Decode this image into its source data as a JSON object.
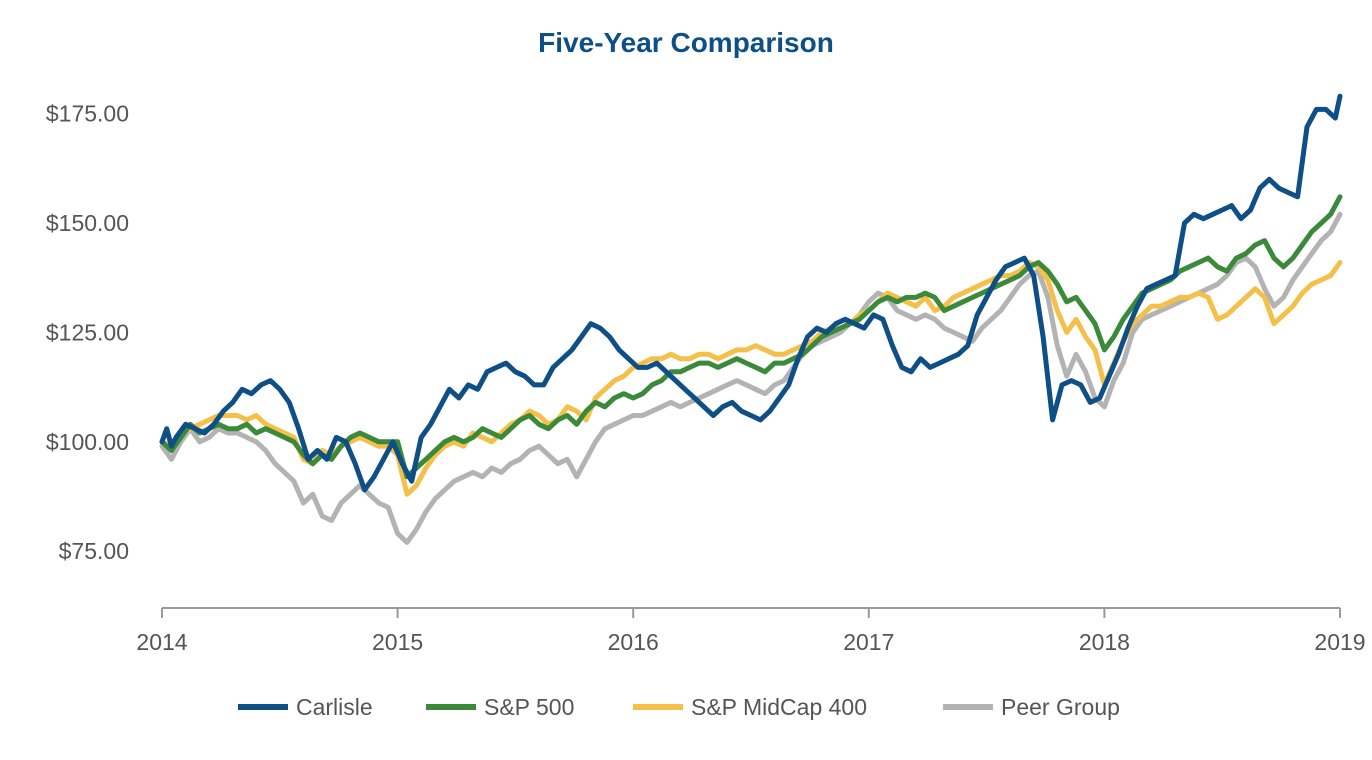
{
  "chart_data": {
    "type": "line",
    "title": "Five-Year Comparison",
    "xlabel": "",
    "ylabel": "",
    "xlim": [
      2014,
      2019
    ],
    "ylim": [
      62,
      185
    ],
    "x_ticks": [
      {
        "value": 2014,
        "label": "2014"
      },
      {
        "value": 2015,
        "label": "2015"
      },
      {
        "value": 2016,
        "label": "2016"
      },
      {
        "value": 2017,
        "label": "2017"
      },
      {
        "value": 2018,
        "label": "2018"
      },
      {
        "value": 2019,
        "label": "2019"
      }
    ],
    "y_ticks": [
      {
        "value": 75,
        "label": "$75.00"
      },
      {
        "value": 100,
        "label": "$100.00"
      },
      {
        "value": 125,
        "label": "$125.00"
      },
      {
        "value": 150,
        "label": "$150.00"
      },
      {
        "value": 175,
        "label": "$175.00"
      }
    ],
    "grid": false,
    "legend_position": "bottom",
    "colors": {
      "axis": "#999999",
      "title": "#0d4f86",
      "text": "#555555"
    },
    "series": [
      {
        "name": "Carlisle",
        "color": "#0d4f86",
        "x": [
          2014.0,
          2014.02,
          2014.04,
          2014.06,
          2014.1,
          2014.14,
          2014.18,
          2014.22,
          2014.26,
          2014.3,
          2014.34,
          2014.38,
          2014.42,
          2014.46,
          2014.5,
          2014.54,
          2014.58,
          2014.62,
          2014.66,
          2014.7,
          2014.74,
          2014.78,
          2014.82,
          2014.86,
          2014.9,
          2014.94,
          2014.98,
          2015.02,
          2015.06,
          2015.1,
          2015.14,
          2015.18,
          2015.22,
          2015.26,
          2015.3,
          2015.34,
          2015.38,
          2015.42,
          2015.46,
          2015.5,
          2015.54,
          2015.58,
          2015.62,
          2015.66,
          2015.7,
          2015.74,
          2015.78,
          2015.82,
          2015.86,
          2015.9,
          2015.94,
          2015.98,
          2016.02,
          2016.06,
          2016.1,
          2016.14,
          2016.18,
          2016.22,
          2016.26,
          2016.3,
          2016.34,
          2016.38,
          2016.42,
          2016.46,
          2016.5,
          2016.54,
          2016.58,
          2016.62,
          2016.66,
          2016.7,
          2016.74,
          2016.78,
          2016.82,
          2016.86,
          2016.9,
          2016.94,
          2016.98,
          2017.02,
          2017.06,
          2017.1,
          2017.14,
          2017.18,
          2017.22,
          2017.26,
          2017.3,
          2017.34,
          2017.38,
          2017.42,
          2017.46,
          2017.5,
          2017.54,
          2017.58,
          2017.62,
          2017.66,
          2017.7,
          2017.74,
          2017.78,
          2017.82,
          2017.86,
          2017.9,
          2017.94,
          2017.98,
          2018.02,
          2018.06,
          2018.1,
          2018.14,
          2018.18,
          2018.22,
          2018.26,
          2018.3,
          2018.34,
          2018.38,
          2018.42,
          2018.46,
          2018.5,
          2018.54,
          2018.58,
          2018.62,
          2018.66,
          2018.7,
          2018.74,
          2018.78,
          2018.82,
          2018.86,
          2018.9,
          2018.94,
          2018.98,
          2019.0
        ],
        "values": [
          100,
          103,
          99,
          101,
          104,
          103,
          102,
          104,
          107,
          109,
          112,
          111,
          113,
          114,
          112,
          109,
          103,
          96,
          98,
          96,
          101,
          100,
          95,
          89,
          92,
          96,
          100,
          95,
          91,
          101,
          104,
          108,
          112,
          110,
          113,
          112,
          116,
          117,
          118,
          116,
          115,
          113,
          113,
          117,
          119,
          121,
          124,
          127,
          126,
          124,
          121,
          119,
          117,
          117,
          118,
          116,
          114,
          112,
          110,
          108,
          106,
          108,
          109,
          107,
          106,
          105,
          107,
          110,
          113,
          119,
          124,
          126,
          125,
          127,
          128,
          127,
          126,
          129,
          128,
          122,
          117,
          116,
          119,
          117,
          118,
          119,
          120,
          122,
          129,
          133,
          137,
          140,
          141,
          142,
          138,
          124,
          105,
          113,
          114,
          113,
          109,
          110,
          115,
          120,
          126,
          131,
          135,
          136,
          137,
          138,
          150,
          152,
          151,
          152,
          153,
          154,
          151,
          153,
          158,
          160,
          158,
          157,
          156,
          172,
          176,
          176,
          174,
          179
        ]
      },
      {
        "name": "S&P 500",
        "color": "#3a8a3a",
        "x": [
          2014.0,
          2014.04,
          2014.08,
          2014.12,
          2014.16,
          2014.2,
          2014.24,
          2014.28,
          2014.32,
          2014.36,
          2014.4,
          2014.44,
          2014.48,
          2014.52,
          2014.56,
          2014.6,
          2014.64,
          2014.68,
          2014.72,
          2014.76,
          2014.8,
          2014.84,
          2014.88,
          2014.92,
          2014.96,
          2015.0,
          2015.04,
          2015.08,
          2015.12,
          2015.16,
          2015.2,
          2015.24,
          2015.28,
          2015.32,
          2015.36,
          2015.4,
          2015.44,
          2015.48,
          2015.52,
          2015.56,
          2015.6,
          2015.64,
          2015.68,
          2015.72,
          2015.76,
          2015.8,
          2015.84,
          2015.88,
          2015.92,
          2015.96,
          2016.0,
          2016.04,
          2016.08,
          2016.12,
          2016.16,
          2016.2,
          2016.24,
          2016.28,
          2016.32,
          2016.36,
          2016.4,
          2016.44,
          2016.48,
          2016.52,
          2016.56,
          2016.6,
          2016.64,
          2016.68,
          2016.72,
          2016.76,
          2016.8,
          2016.84,
          2016.88,
          2016.92,
          2016.96,
          2017.0,
          2017.04,
          2017.08,
          2017.12,
          2017.16,
          2017.2,
          2017.24,
          2017.28,
          2017.32,
          2017.36,
          2017.4,
          2017.44,
          2017.48,
          2017.52,
          2017.56,
          2017.6,
          2017.64,
          2017.68,
          2017.72,
          2017.76,
          2017.8,
          2017.84,
          2017.88,
          2017.92,
          2017.96,
          2018.0,
          2018.04,
          2018.08,
          2018.12,
          2018.16,
          2018.2,
          2018.24,
          2018.28,
          2018.32,
          2018.36,
          2018.4,
          2018.44,
          2018.48,
          2018.52,
          2018.56,
          2018.6,
          2018.64,
          2018.68,
          2018.72,
          2018.76,
          2018.8,
          2018.84,
          2018.88,
          2018.92,
          2018.96,
          2019.0
        ],
        "values": [
          100,
          98,
          101,
          104,
          102,
          103,
          104,
          103,
          103,
          104,
          102,
          103,
          102,
          101,
          100,
          97,
          95,
          97,
          96,
          99,
          101,
          102,
          101,
          100,
          100,
          100,
          92,
          94,
          96,
          98,
          100,
          101,
          100,
          101,
          103,
          102,
          101,
          103,
          105,
          106,
          104,
          103,
          105,
          106,
          104,
          107,
          109,
          108,
          110,
          111,
          110,
          111,
          113,
          114,
          116,
          116,
          117,
          118,
          118,
          117,
          118,
          119,
          118,
          117,
          116,
          118,
          118,
          119,
          120,
          122,
          124,
          125,
          126,
          127,
          128,
          130,
          132,
          133,
          132,
          133,
          133,
          134,
          133,
          130,
          131,
          132,
          133,
          134,
          135,
          136,
          137,
          138,
          140,
          141,
          139,
          136,
          132,
          133,
          130,
          127,
          121,
          124,
          128,
          131,
          134,
          135,
          136,
          137,
          139,
          140,
          141,
          142,
          140,
          139,
          142,
          143,
          145,
          146,
          142,
          140,
          142,
          145,
          148,
          150,
          152,
          156
        ]
      },
      {
        "name": "S&P MidCap 400",
        "color": "#f5c04a",
        "x": [
          2014.0,
          2014.04,
          2014.08,
          2014.12,
          2014.16,
          2014.2,
          2014.24,
          2014.28,
          2014.32,
          2014.36,
          2014.4,
          2014.44,
          2014.48,
          2014.52,
          2014.56,
          2014.6,
          2014.64,
          2014.68,
          2014.72,
          2014.76,
          2014.8,
          2014.84,
          2014.88,
          2014.92,
          2014.96,
          2015.0,
          2015.04,
          2015.08,
          2015.12,
          2015.16,
          2015.2,
          2015.24,
          2015.28,
          2015.32,
          2015.36,
          2015.4,
          2015.44,
          2015.48,
          2015.52,
          2015.56,
          2015.6,
          2015.64,
          2015.68,
          2015.72,
          2015.76,
          2015.8,
          2015.84,
          2015.88,
          2015.92,
          2015.96,
          2016.0,
          2016.04,
          2016.08,
          2016.12,
          2016.16,
          2016.2,
          2016.24,
          2016.28,
          2016.32,
          2016.36,
          2016.4,
          2016.44,
          2016.48,
          2016.52,
          2016.56,
          2016.6,
          2016.64,
          2016.68,
          2016.72,
          2016.76,
          2016.8,
          2016.84,
          2016.88,
          2016.92,
          2016.96,
          2017.0,
          2017.04,
          2017.08,
          2017.12,
          2017.16,
          2017.2,
          2017.24,
          2017.28,
          2017.32,
          2017.36,
          2017.4,
          2017.44,
          2017.48,
          2017.52,
          2017.56,
          2017.6,
          2017.64,
          2017.68,
          2017.72,
          2017.76,
          2017.8,
          2017.84,
          2017.88,
          2017.92,
          2017.96,
          2018.0,
          2018.04,
          2018.08,
          2018.12,
          2018.16,
          2018.2,
          2018.24,
          2018.28,
          2018.32,
          2018.36,
          2018.4,
          2018.44,
          2018.48,
          2018.52,
          2018.56,
          2018.6,
          2018.64,
          2018.68,
          2018.72,
          2018.76,
          2018.8,
          2018.84,
          2018.88,
          2018.92,
          2018.96,
          2019.0
        ],
        "values": [
          100,
          99,
          102,
          103,
          104,
          105,
          106,
          106,
          106,
          105,
          106,
          104,
          103,
          102,
          101,
          96,
          95,
          98,
          97,
          99,
          100,
          101,
          100,
          99,
          99,
          97,
          88,
          90,
          94,
          97,
          99,
          100,
          99,
          102,
          101,
          100,
          102,
          104,
          105,
          107,
          106,
          104,
          105,
          108,
          107,
          105,
          110,
          112,
          114,
          115,
          117,
          118,
          119,
          119,
          120,
          119,
          119,
          120,
          120,
          119,
          120,
          121,
          121,
          122,
          121,
          120,
          120,
          121,
          122,
          123,
          125,
          126,
          126,
          127,
          129,
          130,
          132,
          134,
          133,
          132,
          131,
          133,
          130,
          131,
          133,
          134,
          135,
          136,
          137,
          138,
          138,
          139,
          141,
          140,
          137,
          130,
          125,
          128,
          124,
          121,
          113,
          118,
          123,
          127,
          129,
          131,
          131,
          132,
          133,
          133,
          134,
          133,
          128,
          129,
          131,
          133,
          135,
          133,
          127,
          129,
          131,
          134,
          136,
          137,
          138,
          141
        ]
      },
      {
        "name": "Peer Group",
        "color": "#b3b3b3",
        "x": [
          2014.0,
          2014.04,
          2014.08,
          2014.12,
          2014.16,
          2014.2,
          2014.24,
          2014.28,
          2014.32,
          2014.36,
          2014.4,
          2014.44,
          2014.48,
          2014.52,
          2014.56,
          2014.6,
          2014.64,
          2014.68,
          2014.72,
          2014.76,
          2014.8,
          2014.84,
          2014.88,
          2014.92,
          2014.96,
          2015.0,
          2015.04,
          2015.08,
          2015.12,
          2015.16,
          2015.2,
          2015.24,
          2015.28,
          2015.32,
          2015.36,
          2015.4,
          2015.44,
          2015.48,
          2015.52,
          2015.56,
          2015.6,
          2015.64,
          2015.68,
          2015.72,
          2015.76,
          2015.8,
          2015.84,
          2015.88,
          2015.92,
          2015.96,
          2016.0,
          2016.04,
          2016.08,
          2016.12,
          2016.16,
          2016.2,
          2016.24,
          2016.28,
          2016.32,
          2016.36,
          2016.4,
          2016.44,
          2016.48,
          2016.52,
          2016.56,
          2016.6,
          2016.64,
          2016.68,
          2016.72,
          2016.76,
          2016.8,
          2016.84,
          2016.88,
          2016.92,
          2016.96,
          2017.0,
          2017.04,
          2017.08,
          2017.12,
          2017.16,
          2017.2,
          2017.24,
          2017.28,
          2017.32,
          2017.36,
          2017.4,
          2017.44,
          2017.48,
          2017.52,
          2017.56,
          2017.6,
          2017.64,
          2017.68,
          2017.72,
          2017.76,
          2017.8,
          2017.84,
          2017.88,
          2017.92,
          2017.96,
          2018.0,
          2018.04,
          2018.08,
          2018.12,
          2018.16,
          2018.2,
          2018.24,
          2018.28,
          2018.32,
          2018.36,
          2018.4,
          2018.44,
          2018.48,
          2018.52,
          2018.56,
          2018.6,
          2018.64,
          2018.68,
          2018.72,
          2018.76,
          2018.8,
          2018.84,
          2018.88,
          2018.92,
          2018.96,
          2019.0
        ],
        "values": [
          99,
          96,
          100,
          103,
          100,
          101,
          103,
          102,
          102,
          101,
          100,
          98,
          95,
          93,
          91,
          86,
          88,
          83,
          82,
          86,
          88,
          90,
          88,
          86,
          85,
          79,
          77,
          80,
          84,
          87,
          89,
          91,
          92,
          93,
          92,
          94,
          93,
          95,
          96,
          98,
          99,
          97,
          95,
          96,
          92,
          96,
          100,
          103,
          104,
          105,
          106,
          106,
          107,
          108,
          109,
          108,
          109,
          110,
          111,
          112,
          113,
          114,
          113,
          112,
          111,
          113,
          114,
          117,
          120,
          122,
          123,
          124,
          125,
          127,
          129,
          132,
          134,
          133,
          130,
          129,
          128,
          129,
          128,
          126,
          125,
          124,
          123,
          126,
          128,
          130,
          133,
          136,
          138,
          139,
          133,
          122,
          115,
          120,
          116,
          110,
          108,
          114,
          118,
          125,
          128,
          129,
          130,
          131,
          132,
          133,
          134,
          135,
          136,
          138,
          141,
          142,
          140,
          135,
          131,
          133,
          137,
          140,
          143,
          146,
          148,
          152
        ]
      }
    ]
  }
}
